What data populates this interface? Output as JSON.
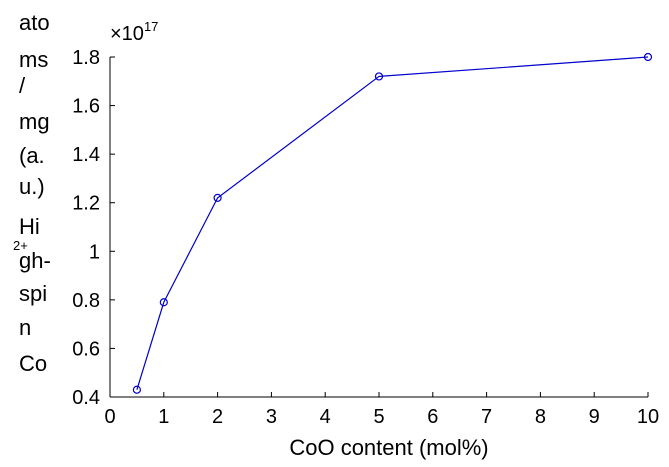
{
  "chart_data": {
    "type": "line",
    "xlabel": "CoO content (mol%)",
    "ylabel_lines": [
      "ato",
      "ms",
      "/",
      "mg",
      "(a.",
      "u.)",
      "Hi",
      "gh-",
      "spi",
      "n",
      "Co"
    ],
    "ylabel_superscript": "2+",
    "y_multiplier_base": "×10",
    "y_multiplier_exp": "17",
    "xlim": [
      0,
      10
    ],
    "ylim": [
      0.4,
      1.8
    ],
    "xticks": [
      0,
      1,
      2,
      3,
      4,
      5,
      6,
      7,
      8,
      9,
      10
    ],
    "yticks": [
      0.4,
      0.6,
      0.8,
      1,
      1.2,
      1.4,
      1.6,
      1.8
    ],
    "ytick_labels": [
      "0.4",
      "0.6",
      "0.8",
      "1",
      "1.2",
      "1.4",
      "1.6",
      "1.8"
    ],
    "series": [
      {
        "x": [
          0.5,
          1,
          2,
          5,
          10
        ],
        "y": [
          0.43,
          0.79,
          1.22,
          1.72,
          1.8
        ],
        "color": "#0000cc",
        "marker": "open-circle"
      }
    ],
    "grid": false
  }
}
